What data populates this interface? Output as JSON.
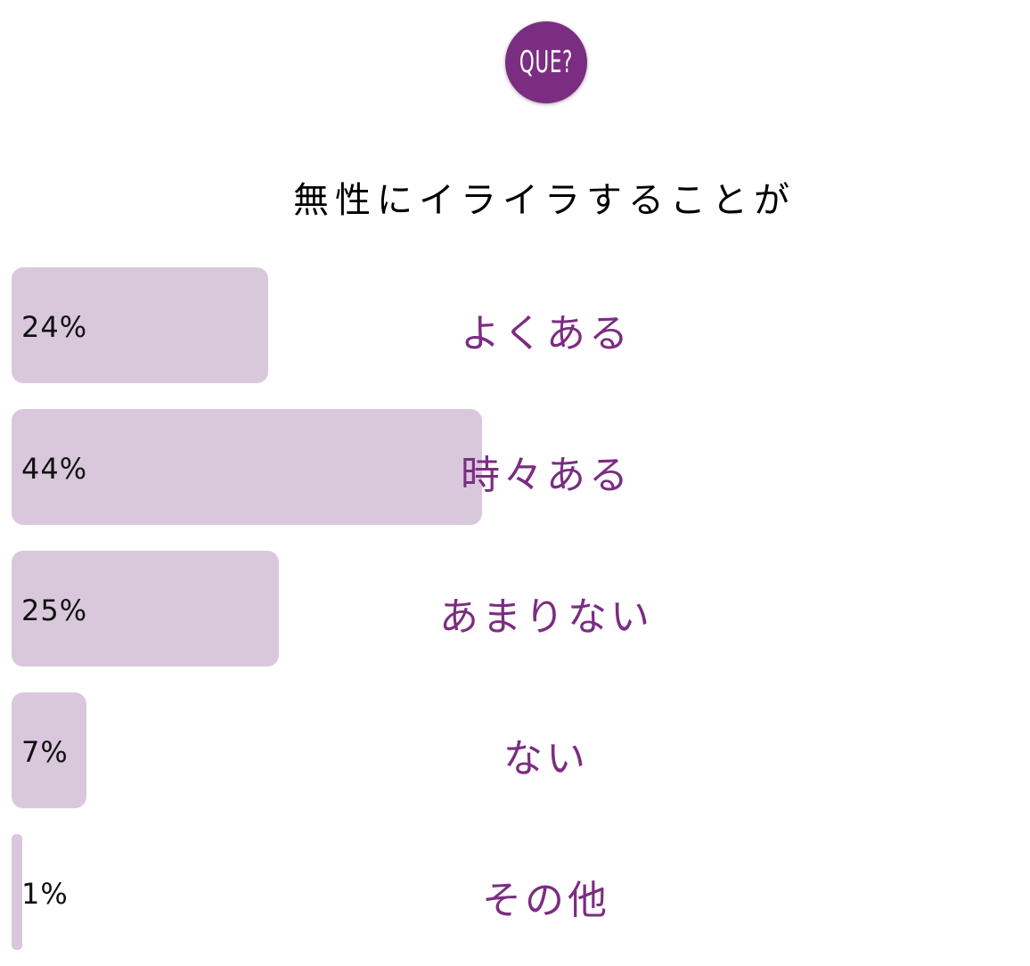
{
  "logo": {
    "text": "QUE?",
    "color": "#7b2d82"
  },
  "title": "無性にイライラすることが",
  "colors": {
    "bar": "#d9c8dc",
    "label": "#7b2d82",
    "text": "#111111"
  },
  "rows": [
    {
      "label": "よくある",
      "pct_label": "24%",
      "value": 24
    },
    {
      "label": "時々ある",
      "pct_label": "44%",
      "value": 44
    },
    {
      "label": "あまりない",
      "pct_label": "25%",
      "value": 25
    },
    {
      "label": "ない",
      "pct_label": "7%",
      "value": 7
    },
    {
      "label": "その他",
      "pct_label": "1%",
      "value": 1
    }
  ],
  "chart_data": {
    "type": "bar",
    "orientation": "horizontal",
    "title": "無性にイライラすることが",
    "categories": [
      "よくある",
      "時々ある",
      "あまりない",
      "ない",
      "その他"
    ],
    "values": [
      24,
      44,
      25,
      7,
      1
    ],
    "unit": "%",
    "xlabel": "",
    "ylabel": "",
    "grid": false,
    "legend": null
  }
}
